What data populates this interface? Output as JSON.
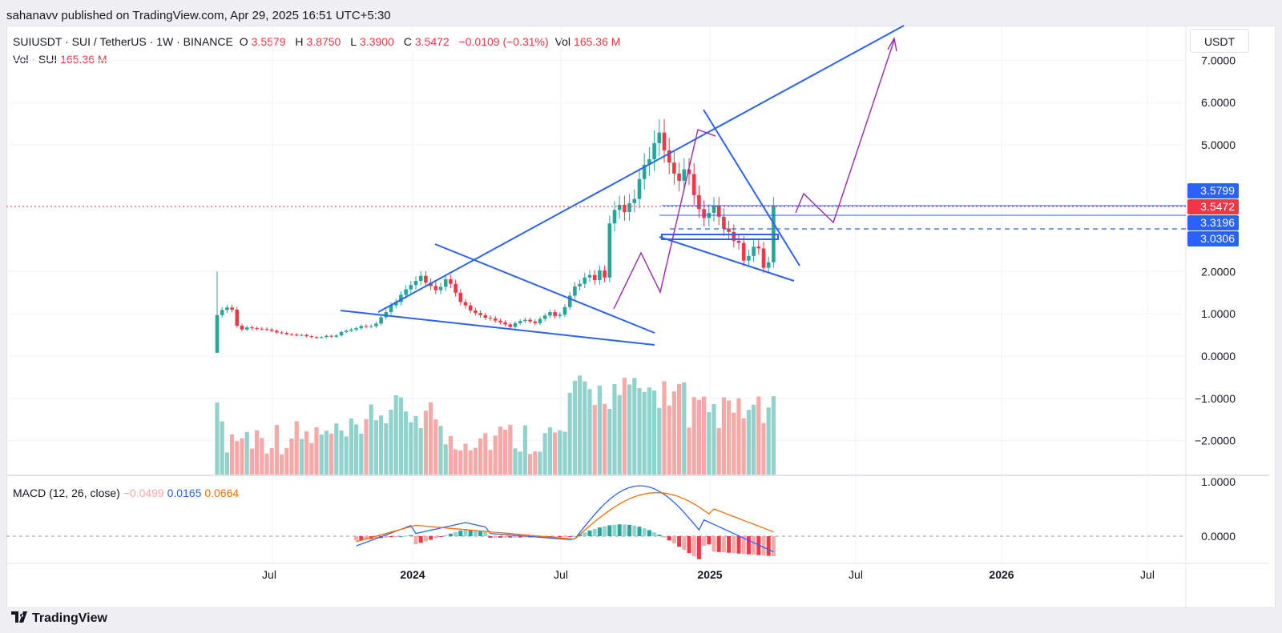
{
  "header": {
    "published": "sahanavv published on TradingView.com, Apr 29, 2025 16:51 UTC+5:30"
  },
  "legend": {
    "symbol": "SUIUSDT · SUI / TetherUS · 1W · BINANCE",
    "open_label": "O",
    "open": "3.5579",
    "high_label": "H",
    "high": "3.8750",
    "low_label": "L",
    "low": "3.3900",
    "close_label": "C",
    "close": "3.5472",
    "change": "−0.0109 (−0.31%)",
    "vol_label": "Vol",
    "vol": "165.36 M"
  },
  "vol_legend": {
    "label": "Vol · SUI",
    "value": "165.36 M"
  },
  "macd_legend": {
    "label": "MACD (12, 26, close)",
    "hist": "−0.0499",
    "macd": "0.0165",
    "signal": "0.0664"
  },
  "currency_button": "USDT",
  "footer": {
    "brand": "TradingView"
  },
  "colors": {
    "up": "#26a69a",
    "down": "#f23645",
    "up_vol": "#92d2cc",
    "down_vol": "#f7a9a7",
    "trendline": "#2962ff",
    "projection": "#9c27b0",
    "macd": "#2962ff",
    "signal": "#ff6d00"
  },
  "chart_data": {
    "type": "candlestick",
    "timeframe": "1W",
    "price_axis": {
      "ticks": [
        "7.0000",
        "6.0000",
        "5.0000",
        "2.0000",
        "1.0000",
        "0.0000",
        "−1.0000",
        "−2.0000"
      ],
      "tick_values": [
        7,
        6,
        5,
        2,
        1,
        0,
        -1,
        -2
      ],
      "lower_ticks": [
        "1.0000",
        "0.0000"
      ],
      "lower_tick_values": [
        1,
        0
      ]
    },
    "time_axis": {
      "labels": [
        "Jul",
        "2024",
        "Jul",
        "2025",
        "Jul",
        "2026",
        "Jul"
      ]
    },
    "price_markers": [
      {
        "value": 3.5799,
        "label": "3.5799",
        "color": "#2962ff"
      },
      {
        "value": 3.5472,
        "label": "3.5472",
        "color": "#f23645"
      },
      {
        "value": 3.3196,
        "label": "3.3196",
        "color": "#2962ff"
      },
      {
        "value": 3.0306,
        "label": "3.0306",
        "color": "#2962ff"
      }
    ],
    "candles_close": [
      0.97,
      1.09,
      1.15,
      1.1,
      0.72,
      0.63,
      0.68,
      0.66,
      0.65,
      0.64,
      0.63,
      0.6,
      0.56,
      0.55,
      0.52,
      0.51,
      0.5,
      0.5,
      0.47,
      0.45,
      0.44,
      0.45,
      0.48,
      0.46,
      0.49,
      0.57,
      0.6,
      0.63,
      0.66,
      0.71,
      0.7,
      0.71,
      0.77,
      0.92,
      1.04,
      1.2,
      1.28,
      1.45,
      1.58,
      1.68,
      1.78,
      1.9,
      1.74,
      1.66,
      1.56,
      1.64,
      1.82,
      1.71,
      1.5,
      1.28,
      1.2,
      1.08,
      1.02,
      0.97,
      0.91,
      0.89,
      0.84,
      0.8,
      0.75,
      0.69,
      0.78,
      0.83,
      0.86,
      0.82,
      0.78,
      0.88,
      0.96,
      1.04,
      0.95,
      0.98,
      1.16,
      1.43,
      1.65,
      1.71,
      1.86,
      1.92,
      1.8,
      2.03,
      1.86,
      3.14,
      3.46,
      3.58,
      3.41,
      3.62,
      3.72,
      4.19,
      4.53,
      4.66,
      5.04,
      5.29,
      4.87,
      4.58,
      4.32,
      4.15,
      4.42,
      4.31,
      3.81,
      3.48,
      3.27,
      3.39,
      3.55,
      3.3,
      3.02,
      2.94,
      2.73,
      2.68,
      2.26,
      2.37,
      2.59,
      2.55,
      2.09,
      2.22,
      3.55
    ],
    "volume_series": "sampled weekly volumes (not labeled)",
    "macd": {
      "hist_last": -0.0499,
      "macd_last": 0.0165,
      "signal_last": 0.0664
    }
  }
}
